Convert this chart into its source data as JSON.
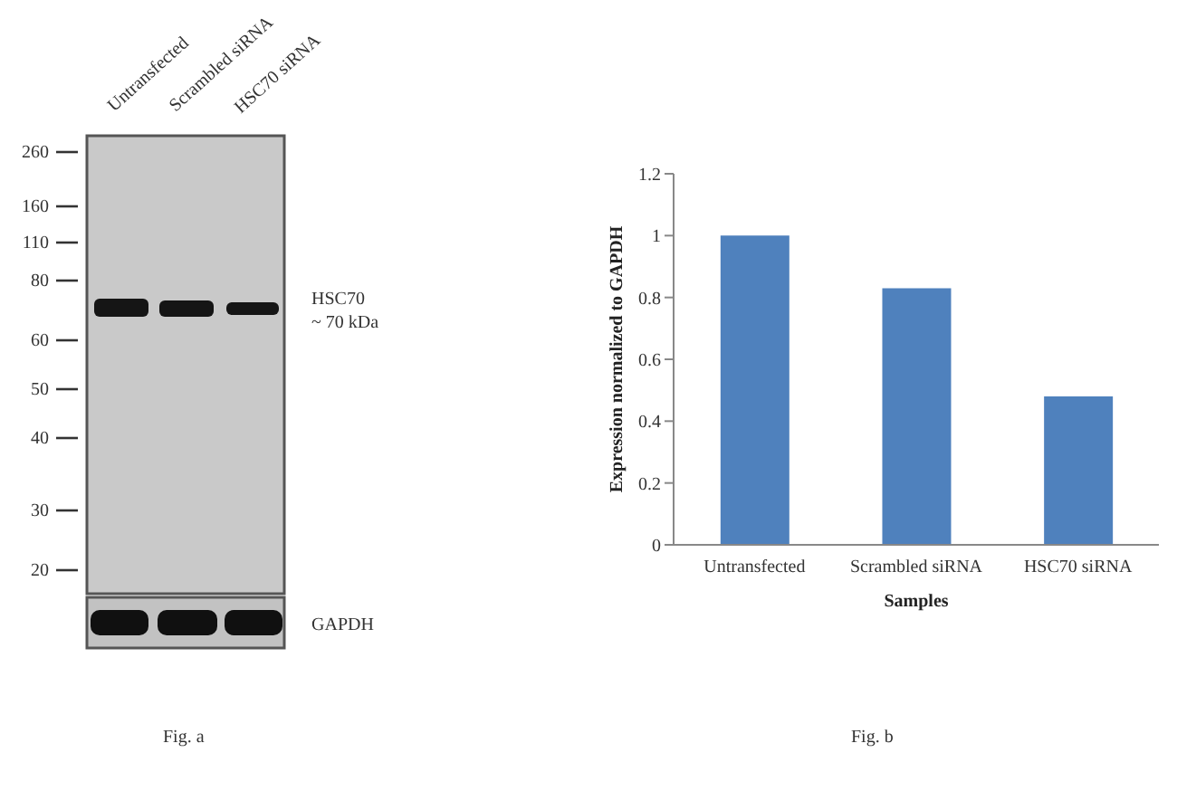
{
  "chart_data": [
    {
      "type": "other",
      "categories": [
        "Untransfected",
        "Scrambled siRNA",
        "HSC70 siRNA"
      ],
      "annotations": [
        "260",
        "160",
        "110",
        "80",
        "60",
        "50",
        "40",
        "30",
        "20",
        "HSC70",
        "~ 70 kDa",
        "GAPDH",
        "Fig. a"
      ]
    },
    {
      "type": "bar",
      "categories": [
        "Untransfected",
        "Scrambled siRNA",
        "HSC70 siRNA"
      ],
      "values": [
        1,
        0.83,
        0.48
      ],
      "color": "#4f81bd",
      "xlabel": "Samples",
      "ylabel": "Expression normalized to GAPDH",
      "ylim": [
        0,
        1.2
      ],
      "yticks": [
        0,
        0.2,
        0.4,
        0.6,
        0.8,
        1,
        1.2
      ],
      "annotations": [
        "Fig. b"
      ]
    }
  ]
}
